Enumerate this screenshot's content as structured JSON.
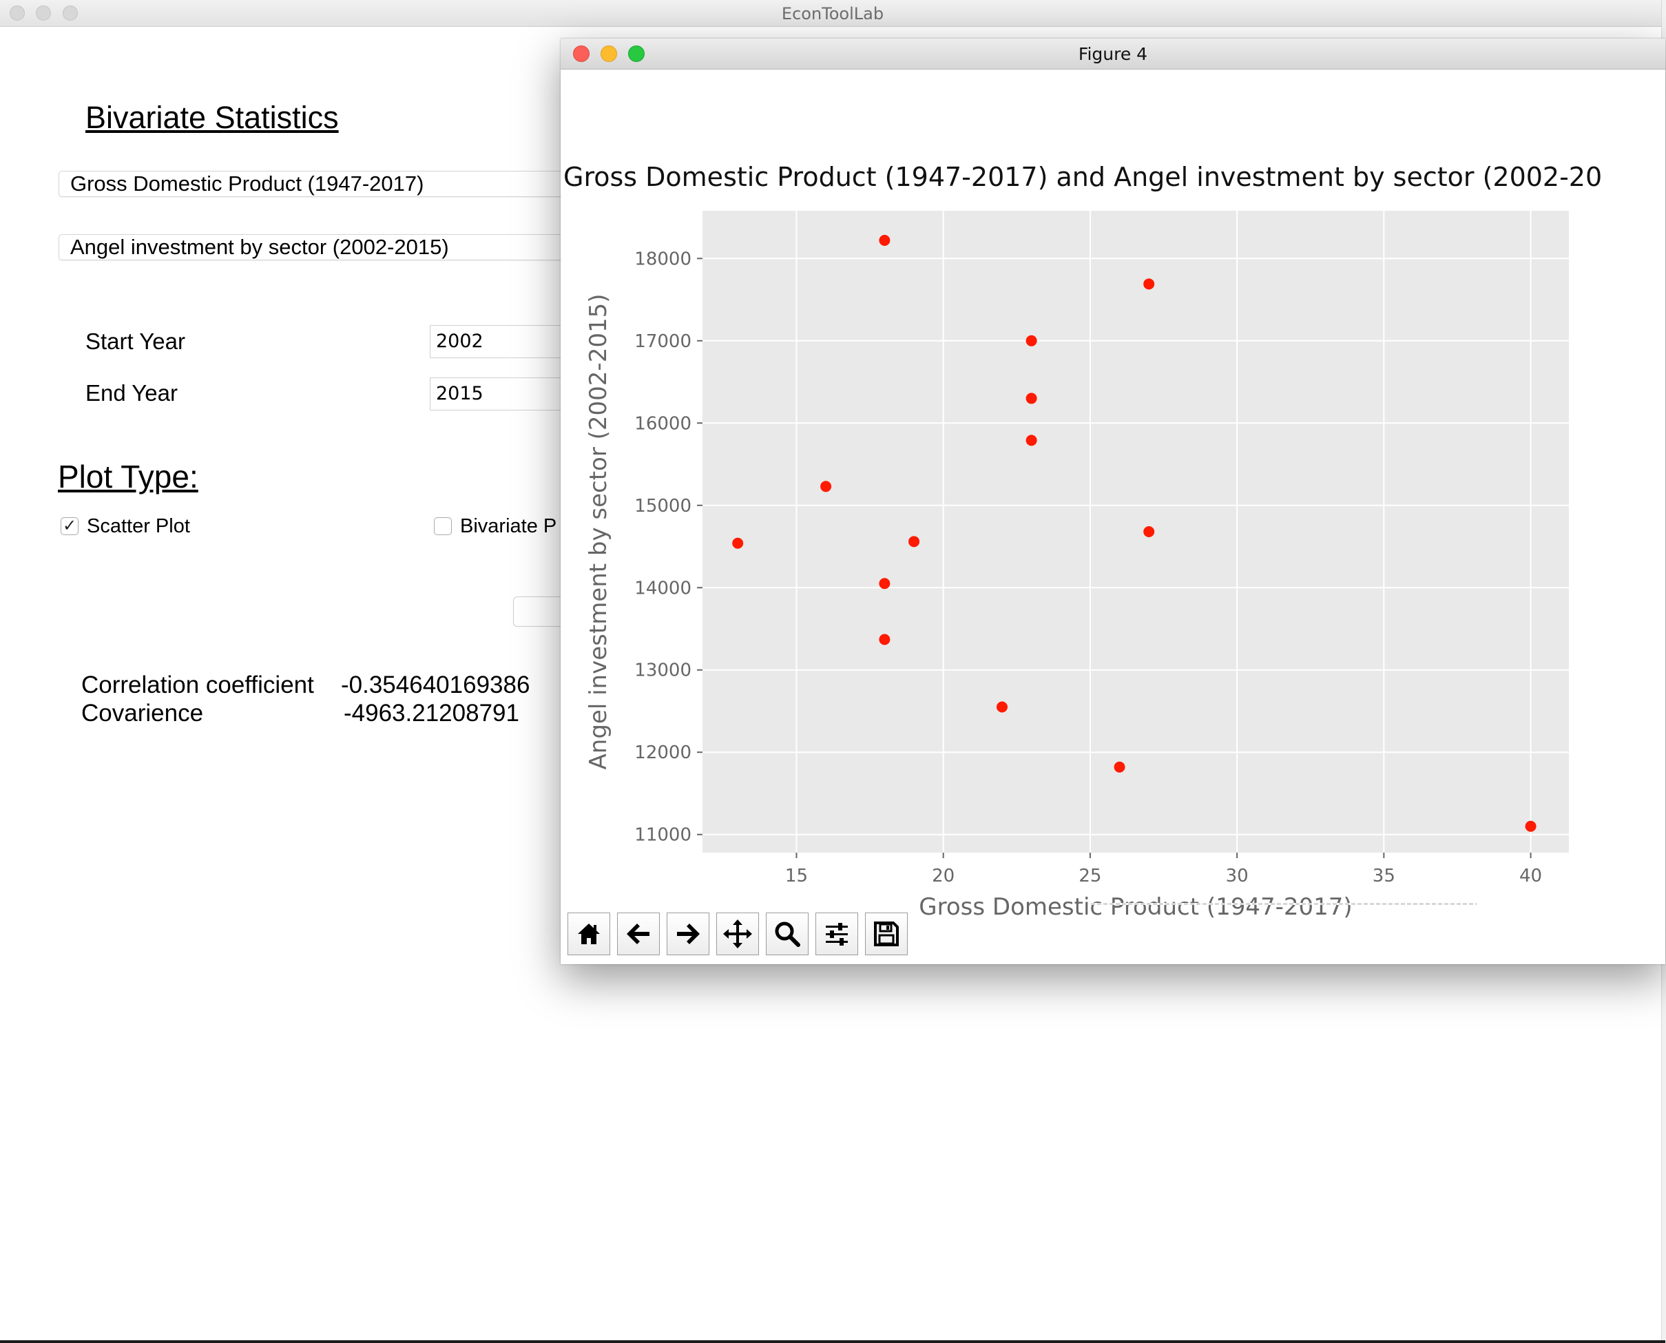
{
  "window": {
    "title": "EconToolLab"
  },
  "bivariate": {
    "heading": "Bivariate Statistics",
    "dataset1": "Gross Domestic Product (1947-2017)",
    "dataset2": "Angel investment by sector (2002-2015)",
    "start_year_label": "Start Year",
    "start_year_value": "2002",
    "end_year_label": "End Year",
    "end_year_value": "2015",
    "plot_type_heading": "Plot Type:",
    "scatter_label": "Scatter Plot",
    "scatter_checked": true,
    "bivariate_label": "Bivariate P",
    "bivariate_checked": false,
    "correlation_label": "Correlation coefficient",
    "correlation_value": "-0.354640169386",
    "covariance_label": "Covarience",
    "covariance_value": "-4963.21208791"
  },
  "figure": {
    "window_title": "Figure 4",
    "toolbar": [
      "home-icon",
      "back-arrow-icon",
      "forward-arrow-icon",
      "pan-icon",
      "zoom-icon",
      "subplots-icon",
      "save-icon"
    ]
  },
  "chart_data": {
    "type": "scatter",
    "title": "Gross Domestic Product (1947-2017) and Angel investment by sector (2002-20",
    "xlabel": "Gross Domestic Product (1947-2017)",
    "ylabel": "Angel investment by sector (2002-2015)",
    "xlim": [
      11.8,
      41.3
    ],
    "ylim": [
      10780,
      18580
    ],
    "xticks": [
      15,
      20,
      25,
      30,
      35,
      40
    ],
    "yticks": [
      11000,
      12000,
      13000,
      14000,
      15000,
      16000,
      17000,
      18000
    ],
    "grid": true,
    "marker_color": "#ff1a00",
    "background": "#e9e9e9",
    "x": [
      18,
      27,
      23,
      23,
      23,
      16,
      13,
      19,
      27,
      18,
      18,
      22,
      26,
      40
    ],
    "y": [
      18220,
      17690,
      17000,
      16300,
      15790,
      15230,
      14540,
      14560,
      14680,
      14050,
      13370,
      12550,
      11820,
      11100
    ]
  }
}
